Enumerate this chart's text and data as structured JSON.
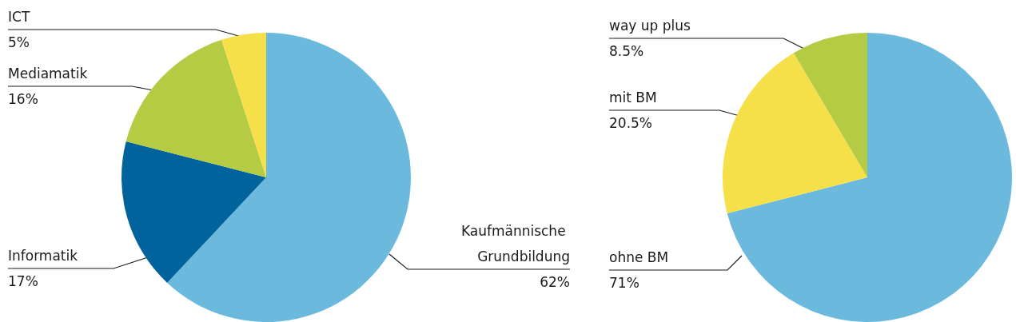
{
  "chart_data": [
    {
      "type": "pie",
      "categories": [
        "Kaufmännische Grundbildung",
        "Informatik",
        "Mediamatik",
        "ICT"
      ],
      "values": [
        62,
        17,
        16,
        5
      ],
      "value_labels": [
        "62%",
        "17%",
        "16%",
        "5%"
      ],
      "colors": [
        "#6bbade",
        "#00639c",
        "#b5cb43",
        "#f6e04a"
      ]
    },
    {
      "type": "pie",
      "categories": [
        "ohne BM",
        "mit BM",
        "way up plus"
      ],
      "values": [
        71,
        20.5,
        8.5
      ],
      "value_labels": [
        "71%",
        "20.5%",
        "8.5%"
      ],
      "colors": [
        "#6bbade",
        "#f6e04a",
        "#b5cb43"
      ]
    }
  ]
}
